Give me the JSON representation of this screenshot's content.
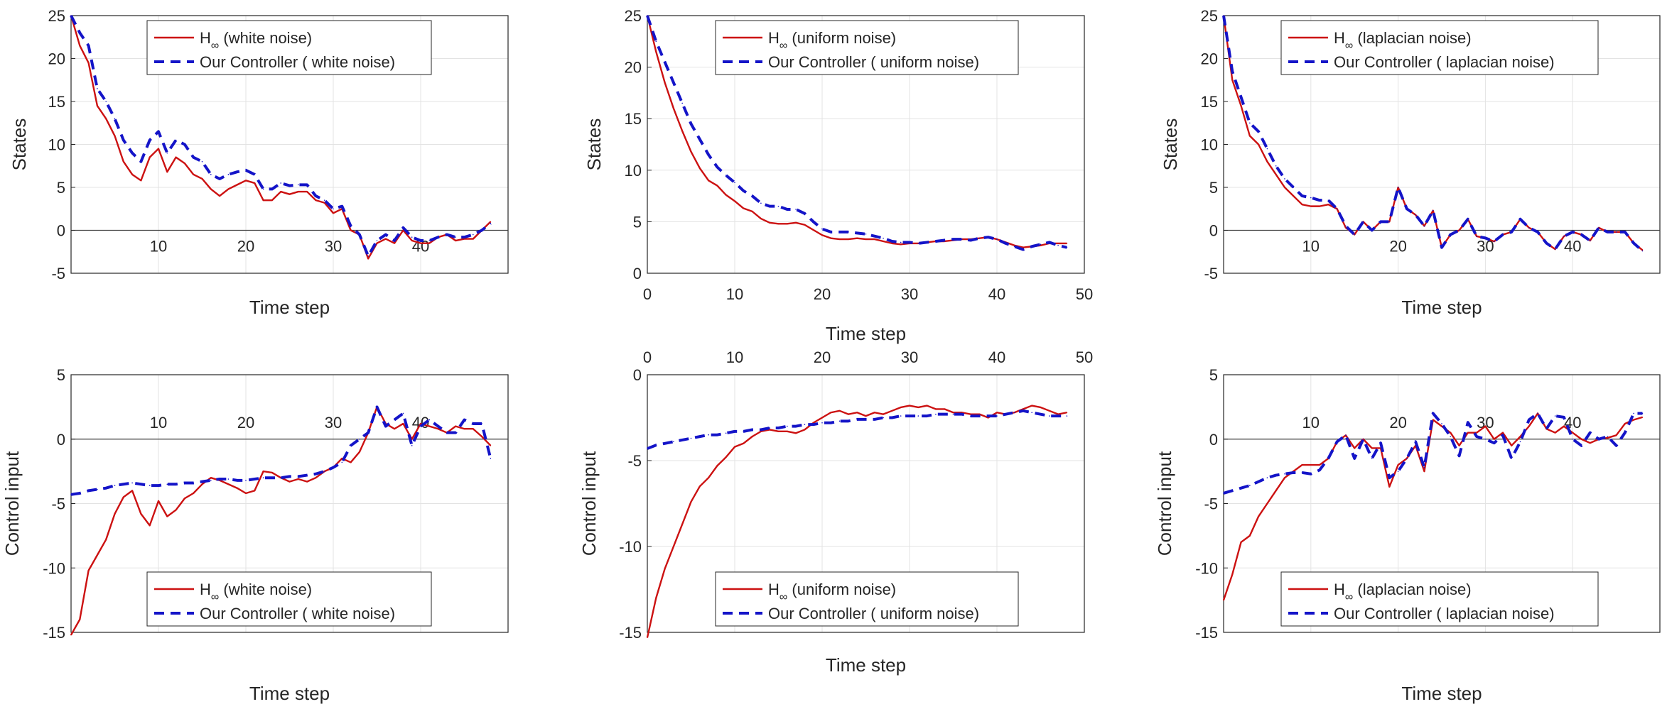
{
  "legend_sub": "∞",
  "colors": {
    "hinf": "#cc1111",
    "ours": "#1414c8",
    "grid": "#e3e3e3",
    "axis": "#262626",
    "zero": "#404040"
  },
  "chart_data": [
    {
      "id": "p11",
      "type": "line",
      "row": "top",
      "xlim": [
        0,
        50
      ],
      "ylim": [
        -5,
        25
      ],
      "xlabel": "Time step",
      "ylabel": "States",
      "x_ticks": [
        10,
        20,
        30,
        40
      ],
      "x_tick_labels": [
        "10",
        "20",
        "30",
        "40"
      ],
      "y_ticks": [
        -5,
        0,
        5,
        10,
        15,
        20,
        25
      ],
      "y_tick_labels": [
        "-5",
        "0",
        "5",
        "10",
        "15",
        "20",
        "25"
      ],
      "legend": {
        "pos": "top-center",
        "h_label": "H",
        "h_suffix": "(white noise)",
        "ours_label": "Our Controller ( white noise)"
      },
      "series": [
        {
          "name": "H∞ (white noise)",
          "style": "solid",
          "values": [
            25,
            21.5,
            19.5,
            14.5,
            13,
            11,
            8,
            6.5,
            5.8,
            8.5,
            9.5,
            6.8,
            8.5,
            7.8,
            6.5,
            6,
            4.8,
            4,
            4.8,
            5.3,
            5.8,
            5.5,
            3.5,
            3.5,
            4.5,
            4.2,
            4.5,
            4.5,
            3.5,
            3.2,
            2,
            2.5,
            0,
            -0.5,
            -3.3,
            -1.5,
            -1,
            -1.5,
            0,
            -1.2,
            -1.5,
            -1.5,
            -0.8,
            -0.5,
            -1.2,
            -1,
            -1,
            0,
            1
          ]
        },
        {
          "name": "Our Controller ( white noise)",
          "style": "dashed",
          "values": [
            25,
            23,
            21.5,
            16.5,
            15,
            13,
            10.5,
            9,
            8,
            10.5,
            11.5,
            9,
            10.5,
            10,
            8.5,
            8,
            6.5,
            6,
            6.5,
            6.8,
            7,
            6.5,
            4.8,
            4.8,
            5.5,
            5.2,
            5.3,
            5.3,
            4,
            3.5,
            2.5,
            2.8,
            0.5,
            -0.5,
            -3,
            -1.2,
            -0.5,
            -1.2,
            0.3,
            -0.8,
            -1.2,
            -1.2,
            -0.8,
            -0.5,
            -0.8,
            -0.8,
            -0.5,
            0,
            0.8
          ]
        }
      ]
    },
    {
      "id": "p12",
      "type": "line",
      "row": "top",
      "xlim": [
        0,
        50
      ],
      "ylim": [
        0,
        25
      ],
      "xlabel": "Time step",
      "ylabel": "States",
      "x_ticks": [
        0,
        10,
        20,
        30,
        40,
        50
      ],
      "x_tick_labels": [
        "0",
        "10",
        "20",
        "30",
        "40",
        "50"
      ],
      "y_ticks": [
        0,
        5,
        10,
        15,
        20,
        25
      ],
      "y_tick_labels": [
        "0",
        "5",
        "10",
        "15",
        "20",
        "25"
      ],
      "legend": {
        "pos": "top-right",
        "h_label": "H",
        "h_suffix": "(uniform noise)",
        "ours_label": "Our Controller ( uniform noise)"
      },
      "series": [
        {
          "name": "H∞ (uniform noise)",
          "style": "solid",
          "values": [
            25,
            21.5,
            18.5,
            16,
            13.8,
            11.8,
            10.2,
            9,
            8.5,
            7.6,
            7,
            6.3,
            6,
            5.3,
            4.9,
            4.8,
            4.8,
            4.9,
            4.7,
            4.2,
            3.7,
            3.4,
            3.3,
            3.3,
            3.4,
            3.3,
            3.3,
            3.1,
            2.9,
            2.8,
            2.9,
            2.9,
            3,
            3.1,
            3.1,
            3.2,
            3.3,
            3.3,
            3.4,
            3.5,
            3.3,
            3,
            2.7,
            2.5,
            2.6,
            2.7,
            2.9,
            2.9,
            2.9
          ]
        },
        {
          "name": "Our Controller ( uniform noise)",
          "style": "dashed",
          "values": [
            25,
            22.5,
            20.5,
            18.5,
            16.5,
            14.5,
            13,
            11.5,
            10.3,
            9.5,
            8.8,
            8,
            7.5,
            6.8,
            6.5,
            6.5,
            6.2,
            6.2,
            5.8,
            5,
            4.3,
            4,
            4,
            4,
            3.9,
            3.8,
            3.6,
            3.4,
            3.1,
            3,
            3,
            2.9,
            3,
            3.1,
            3.2,
            3.3,
            3.3,
            3.2,
            3.4,
            3.5,
            3.3,
            2.9,
            2.6,
            2.3,
            2.6,
            2.8,
            3,
            2.7,
            2.5
          ]
        }
      ]
    },
    {
      "id": "p13",
      "type": "line",
      "row": "top",
      "xlim": [
        0,
        50
      ],
      "ylim": [
        -5,
        25
      ],
      "xlabel": "Time step",
      "ylabel": "States",
      "x_ticks": [
        10,
        20,
        30,
        40
      ],
      "x_tick_labels": [
        "10",
        "20",
        "30",
        "40"
      ],
      "y_ticks": [
        -5,
        0,
        5,
        10,
        15,
        20,
        25
      ],
      "y_tick_labels": [
        "-5",
        "0",
        "5",
        "10",
        "15",
        "20",
        "25"
      ],
      "legend": {
        "pos": "top-right",
        "h_label": "H",
        "h_suffix": "(laplacian noise)",
        "ours_label": "Our Controller ( laplacian noise)"
      },
      "series": [
        {
          "name": "H∞ (laplacian noise)",
          "style": "solid",
          "values": [
            25,
            17.5,
            14.5,
            11,
            10,
            8,
            6.5,
            5,
            4,
            3,
            2.8,
            2.8,
            3,
            2.5,
            0.3,
            -0.5,
            1,
            0,
            1,
            1,
            5,
            2.5,
            1.8,
            0.5,
            2.3,
            -2,
            -0.5,
            0,
            1.3,
            -0.7,
            -0.9,
            -1.3,
            -0.5,
            -0.2,
            1.3,
            0.3,
            -0.2,
            -1.5,
            -2.2,
            -0.7,
            -0.2,
            -0.5,
            -1.2,
            0.3,
            -0.2,
            -0.2,
            -0.2,
            -1.5,
            -2.3
          ]
        },
        {
          "name": "Our Controller ( laplacian noise)",
          "style": "dashed",
          "values": [
            25,
            18.5,
            15.5,
            12.5,
            11.5,
            9.5,
            7.5,
            6,
            5,
            4,
            3.8,
            3.5,
            3.5,
            2.5,
            0.5,
            -0.5,
            1,
            0,
            1,
            1,
            5,
            2.5,
            1.8,
            0.5,
            2.3,
            -2,
            -0.5,
            0,
            1.3,
            -0.7,
            -0.9,
            -1.3,
            -0.5,
            -0.2,
            1.3,
            0.3,
            -0.2,
            -1.5,
            -2.2,
            -0.7,
            -0.2,
            -0.5,
            -1.2,
            0.3,
            -0.2,
            -0.2,
            -0.2,
            -1.5,
            -2.4
          ]
        }
      ]
    },
    {
      "id": "p21",
      "type": "line",
      "row": "bottom",
      "xlim": [
        0,
        50
      ],
      "ylim": [
        -15,
        5
      ],
      "xlabel": "Time step",
      "ylabel": "Control input",
      "x_ticks": [
        10,
        20,
        30,
        40
      ],
      "x_tick_labels": [
        "10",
        "20",
        "30",
        "40"
      ],
      "y_ticks": [
        -15,
        -10,
        -5,
        0,
        5
      ],
      "y_tick_labels": [
        "-15",
        "-10",
        "-5",
        "0",
        "5"
      ],
      "legend": {
        "pos": "bottom-center",
        "h_label": "H",
        "h_suffix": "(white noise)",
        "ours_label": "Our Controller ( white noise)"
      },
      "series": [
        {
          "name": "H∞ (white noise)",
          "style": "solid",
          "values": [
            -15.2,
            -14,
            -10.2,
            -9,
            -7.8,
            -5.8,
            -4.5,
            -4,
            -5.8,
            -6.7,
            -4.8,
            -6,
            -5.5,
            -4.6,
            -4.2,
            -3.5,
            -3,
            -3.2,
            -3.5,
            -3.8,
            -4.2,
            -4,
            -2.5,
            -2.6,
            -3,
            -3.3,
            -3.1,
            -3.3,
            -3,
            -2.5,
            -2.2,
            -1.5,
            -1.8,
            -1,
            0.5,
            2.5,
            1.2,
            0.8,
            1.2,
            0,
            1.2,
            1,
            0.8,
            0.5,
            1,
            0.8,
            0.8,
            0.2,
            -0.5
          ]
        },
        {
          "name": "Our Controller ( white noise)",
          "style": "dashed",
          "values": [
            -4.3,
            -4.2,
            -4,
            -3.9,
            -3.8,
            -3.6,
            -3.5,
            -3.4,
            -3.5,
            -3.6,
            -3.6,
            -3.5,
            -3.5,
            -3.4,
            -3.4,
            -3.3,
            -3.2,
            -3.1,
            -3.1,
            -3.2,
            -3.2,
            -3.1,
            -3,
            -3,
            -3,
            -2.9,
            -2.9,
            -2.8,
            -2.7,
            -2.5,
            -2.2,
            -1.8,
            -0.5,
            0,
            0.5,
            2.5,
            1,
            1.5,
            2,
            -0.5,
            1,
            1.5,
            1,
            0.5,
            0.5,
            1.5,
            1.2,
            1.2,
            -1.5
          ]
        }
      ]
    },
    {
      "id": "p22",
      "type": "line",
      "row": "bottom",
      "xlim": [
        0,
        50
      ],
      "ylim": [
        -15,
        0
      ],
      "xlabel": "Time step",
      "ylabel": "Control input",
      "x_ticks": [
        0,
        10,
        20,
        30,
        40,
        50
      ],
      "x_tick_labels": [
        "0",
        "10",
        "20",
        "30",
        "40",
        "50"
      ],
      "y_ticks": [
        -15,
        -10,
        -5,
        0
      ],
      "y_tick_labels": [
        "-15",
        "-10",
        "-5",
        "0"
      ],
      "legend": {
        "pos": "bottom-right",
        "h_label": "H",
        "h_suffix": "(uniform noise)",
        "ours_label": "Our Controller ( uniform noise)"
      },
      "series": [
        {
          "name": "H∞ (uniform noise)",
          "style": "solid",
          "values": [
            -15.3,
            -13,
            -11.3,
            -10,
            -8.7,
            -7.4,
            -6.5,
            -6,
            -5.3,
            -4.8,
            -4.2,
            -4,
            -3.6,
            -3.3,
            -3.2,
            -3.3,
            -3.3,
            -3.4,
            -3.2,
            -2.8,
            -2.5,
            -2.2,
            -2.1,
            -2.3,
            -2.2,
            -2.4,
            -2.2,
            -2.3,
            -2.1,
            -1.9,
            -1.8,
            -1.9,
            -1.8,
            -2,
            -2,
            -2.2,
            -2.2,
            -2.3,
            -2.3,
            -2.5,
            -2.2,
            -2.3,
            -2.2,
            -2,
            -1.8,
            -1.9,
            -2.1,
            -2.3,
            -2.2
          ]
        },
        {
          "name": "Our Controller ( uniform noise)",
          "style": "dashed",
          "values": [
            -4.3,
            -4.1,
            -4,
            -3.9,
            -3.8,
            -3.7,
            -3.6,
            -3.5,
            -3.5,
            -3.4,
            -3.3,
            -3.3,
            -3.2,
            -3.2,
            -3.1,
            -3.1,
            -3,
            -3,
            -2.9,
            -2.9,
            -2.8,
            -2.8,
            -2.7,
            -2.7,
            -2.6,
            -2.6,
            -2.6,
            -2.5,
            -2.5,
            -2.4,
            -2.4,
            -2.4,
            -2.4,
            -2.3,
            -2.3,
            -2.3,
            -2.3,
            -2.4,
            -2.4,
            -2.4,
            -2.4,
            -2.3,
            -2.2,
            -2.1,
            -2.2,
            -2.3,
            -2.4,
            -2.4,
            -2.4
          ]
        }
      ]
    },
    {
      "id": "p23",
      "type": "line",
      "row": "bottom",
      "xlim": [
        0,
        50
      ],
      "ylim": [
        -15,
        5
      ],
      "xlabel": "Time step",
      "ylabel": "Control input",
      "x_ticks": [
        10,
        20,
        30,
        40
      ],
      "x_tick_labels": [
        "10",
        "20",
        "30",
        "40"
      ],
      "y_ticks": [
        -15,
        -10,
        -5,
        0,
        5
      ],
      "y_tick_labels": [
        "-15",
        "-10",
        "-5",
        "0",
        "5"
      ],
      "legend": {
        "pos": "bottom-right",
        "h_label": "H",
        "h_suffix": "(laplacian noise)",
        "ours_label": "Our Controller ( laplacian noise)"
      },
      "series": [
        {
          "name": "H∞ (laplacian noise)",
          "style": "solid",
          "values": [
            -12.5,
            -10.5,
            -8,
            -7.5,
            -6,
            -5,
            -4,
            -3,
            -2.5,
            -2,
            -2,
            -2,
            -1.5,
            -0.2,
            0.3,
            -0.7,
            0,
            -0.7,
            -0.7,
            -3.7,
            -2,
            -1.5,
            -0.5,
            -2.5,
            1.5,
            1,
            0.5,
            -0.5,
            0.5,
            0.5,
            1,
            0,
            0.5,
            -0.5,
            0.2,
            1,
            2,
            0.8,
            0.5,
            1,
            0.5,
            0,
            -0.3,
            0,
            0.1,
            0.3,
            1.2,
            1.5,
            1.7
          ]
        },
        {
          "name": "Our Controller ( laplacian noise)",
          "style": "dashed",
          "values": [
            -4.2,
            -4,
            -3.8,
            -3.6,
            -3.3,
            -3,
            -2.8,
            -2.7,
            -2.6,
            -2.6,
            -2.7,
            -2.4,
            -1.5,
            -0.2,
            0.3,
            -1.5,
            0,
            -1.5,
            -0.3,
            -3,
            -2.5,
            -1.5,
            -0.2,
            -2.2,
            2,
            1.2,
            0.2,
            -1.3,
            1.3,
            0.2,
            0,
            -0.3,
            0.3,
            -1.5,
            -0.2,
            1.5,
            2,
            0.8,
            1.8,
            1.7,
            0,
            -0.5,
            0.5,
            0,
            0.2,
            -0.5,
            0.5,
            2,
            2
          ]
        }
      ]
    }
  ]
}
